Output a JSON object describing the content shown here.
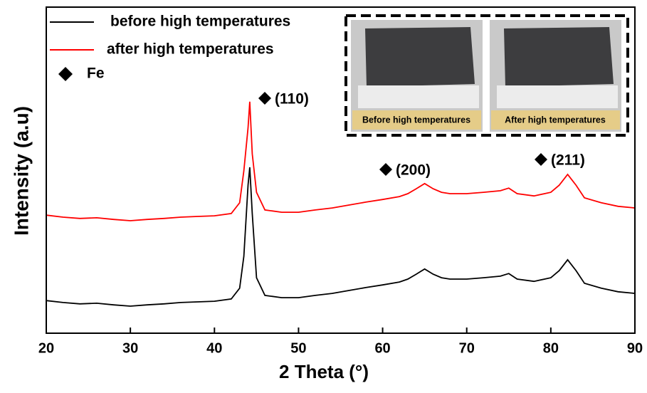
{
  "chart_data": {
    "type": "line",
    "xlabel": "2 Theta (°)",
    "ylabel": "Intensity (a.u)",
    "xlim": [
      20,
      90
    ],
    "xticks": [
      20,
      30,
      40,
      50,
      60,
      70,
      80,
      90
    ],
    "ylim": [
      0,
      100
    ],
    "x": [
      20,
      22,
      24,
      26,
      28,
      30,
      32,
      34,
      36,
      38,
      40,
      42,
      43,
      43.5,
      44,
      44.2,
      44.5,
      45,
      46,
      48,
      50,
      52,
      54,
      56,
      58,
      60,
      62,
      63,
      64,
      65,
      66,
      67,
      68,
      70,
      72,
      74,
      75,
      76,
      78,
      80,
      81,
      82,
      83,
      84,
      86,
      88,
      90
    ],
    "series": [
      {
        "name": "before high temperatures",
        "color": "#000000",
        "values": [
          10.0,
          9.4,
          9.0,
          9.2,
          8.7,
          8.3,
          8.7,
          9.0,
          9.4,
          9.6,
          9.8,
          10.5,
          13.8,
          23.6,
          45.4,
          50.9,
          36.7,
          17.0,
          11.6,
          10.9,
          10.9,
          11.6,
          12.2,
          13.1,
          14.0,
          14.8,
          15.7,
          16.6,
          18.1,
          19.7,
          18.1,
          17.0,
          16.6,
          16.6,
          17.0,
          17.5,
          18.3,
          16.6,
          15.9,
          17.0,
          19.2,
          22.5,
          19.2,
          15.3,
          13.8,
          12.7,
          12.2
        ]
      },
      {
        "name": "after high temperatures",
        "color": "#ff0000",
        "values": [
          36.2,
          35.6,
          35.2,
          35.4,
          34.9,
          34.5,
          34.9,
          35.2,
          35.6,
          35.8,
          36.0,
          36.7,
          40.0,
          49.8,
          63.0,
          71.0,
          55.0,
          43.2,
          37.8,
          37.1,
          37.1,
          37.8,
          38.4,
          39.3,
          40.2,
          41.0,
          41.9,
          42.8,
          44.3,
          45.9,
          44.3,
          43.2,
          42.8,
          42.8,
          43.2,
          43.7,
          44.5,
          42.8,
          42.1,
          43.2,
          45.4,
          48.7,
          45.4,
          41.5,
          40.0,
          38.9,
          38.4
        ]
      }
    ],
    "marker_legend": "Fe",
    "annotations": [
      "(110)",
      "(200)",
      "(211)"
    ],
    "inset_captions": [
      "Before high temperatures",
      "After high temperatures"
    ]
  }
}
